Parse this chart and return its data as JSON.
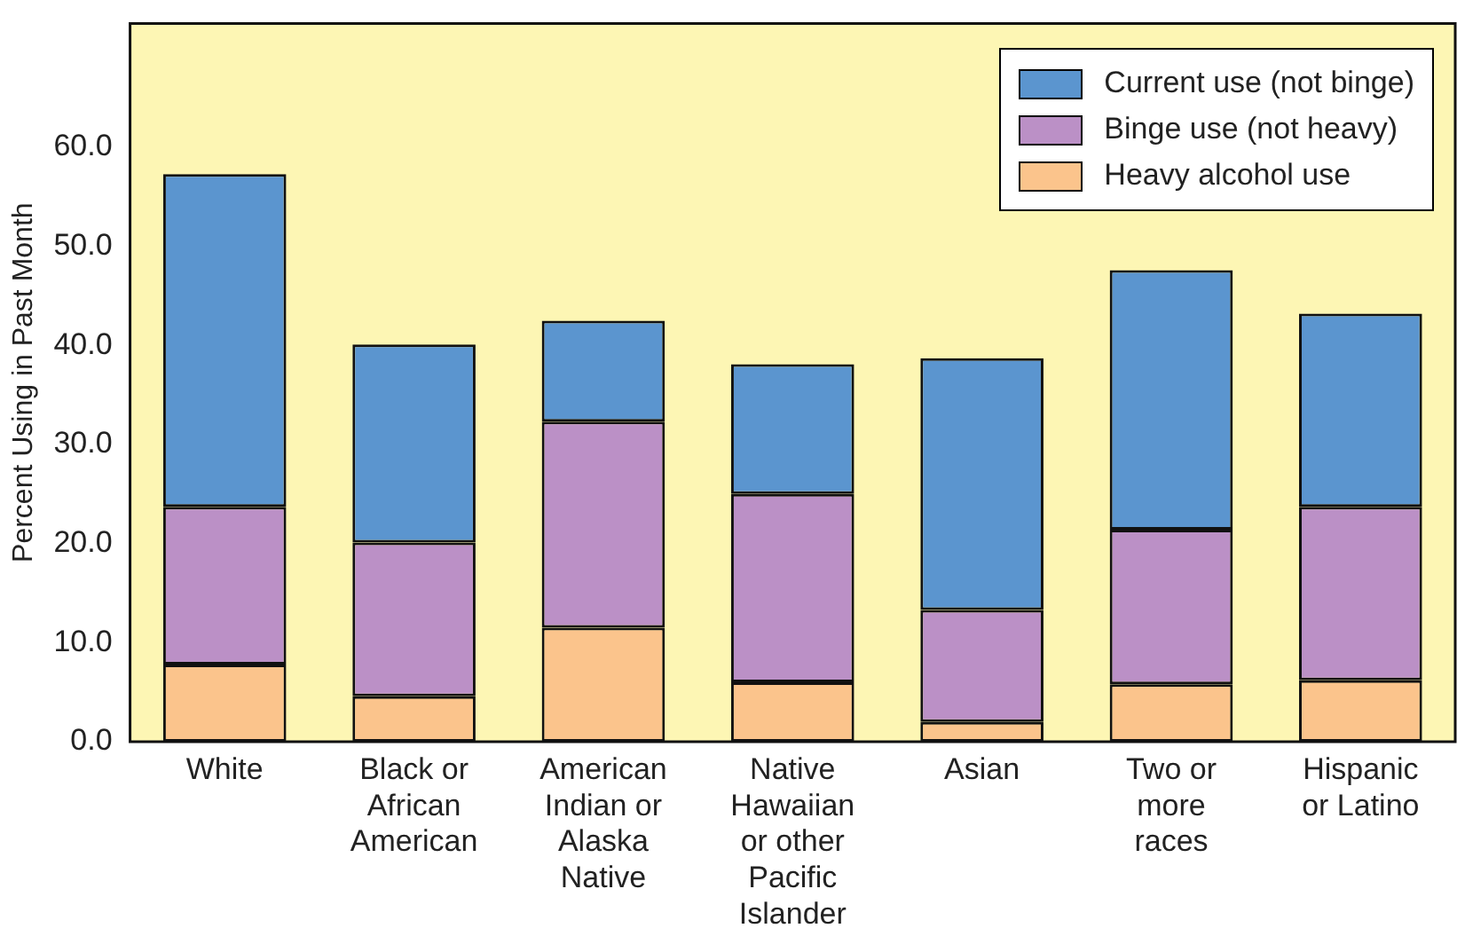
{
  "chart_data": {
    "type": "bar",
    "stacked": true,
    "ylabel": "Percent Using in Past Month",
    "categories": [
      "White",
      "Black or African American",
      "American Indian or Alaska Native",
      "Native Hawaiian or other Pacific Islander",
      "Asian",
      "Two or more races",
      "Hispanic or Latino"
    ],
    "series": [
      {
        "name": "Heavy alcohol use",
        "color": "#fbc48c",
        "values": [
          7.8,
          4.6,
          11.5,
          6.0,
          2.0,
          5.8,
          6.2
        ]
      },
      {
        "name": "Binge use (not heavy)",
        "color": "#bb90c6",
        "values": [
          15.9,
          15.5,
          20.8,
          19.0,
          11.3,
          15.6,
          17.5
        ]
      },
      {
        "name": "Current use (not binge)",
        "color": "#5b95cf",
        "values": [
          33.6,
          20.0,
          10.2,
          13.1,
          25.4,
          26.2,
          19.5
        ]
      }
    ],
    "ylim": [
      0,
      72.5
    ],
    "yticks": [
      {
        "value": 0,
        "label": "0.0"
      },
      {
        "value": 10,
        "label": "10.0"
      },
      {
        "value": 20,
        "label": "20.0"
      },
      {
        "value": 30,
        "label": "30.0"
      },
      {
        "value": 40,
        "label": "40.0"
      },
      {
        "value": 50,
        "label": "50.0"
      },
      {
        "value": 60,
        "label": "60.0"
      }
    ],
    "grid": false,
    "legend": "top right"
  }
}
